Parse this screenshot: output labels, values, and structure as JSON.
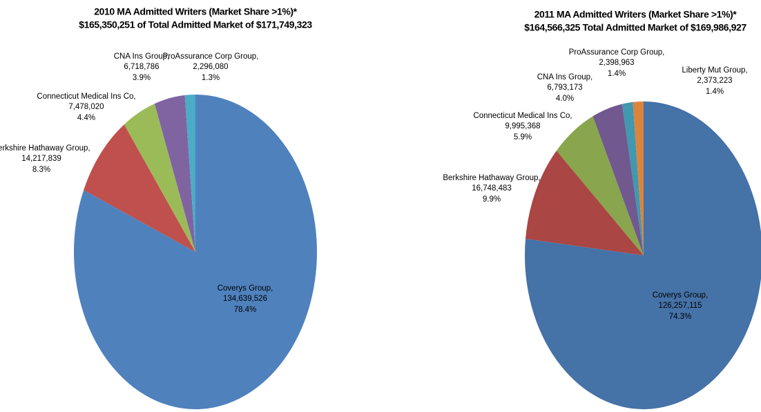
{
  "chart_data": [
    {
      "type": "pie",
      "title": [
        "2010 MA Admitted Writers (Market Share >1%)*",
        "$165,350,251 of Total Admitted Market of $171,749,323"
      ],
      "categories": [
        "Coverys Group,",
        "Berkshire Hathaway Group,",
        "Connecticut Medical Ins Co,",
        "CNA Ins Group,",
        "ProAssurance Corp Group,"
      ],
      "values": [
        134639526,
        14217839,
        7478020,
        6718786,
        2296080
      ],
      "value_labels": [
        "134,639,526",
        "14,217,839",
        "7,478,020",
        "6,718,786",
        "2,296,080"
      ],
      "share_labels": [
        "78.4%",
        "8.3%",
        "4.4%",
        "3.9%",
        "1.3%"
      ],
      "colors": [
        "#4f81bd",
        "#c0504d",
        "#9bbb59",
        "#8064a2",
        "#4bacc6"
      ]
    },
    {
      "type": "pie",
      "title": [
        "2011 MA Admitted Writers (Market Share >1%)*",
        "$164,566,325 Total Admitted Market of $169,986,927"
      ],
      "categories": [
        "Coverys Group,",
        "Berkshire Hathaway Group,",
        "Connecticut Medical Ins Co,",
        "CNA Ins Group,",
        "ProAssurance Corp Group,",
        "Liberty Mut Group,"
      ],
      "values": [
        126257115,
        16748483,
        9995368,
        6793173,
        2398963,
        2373223
      ],
      "value_labels": [
        "126,257,115",
        "16,748,483",
        "9,995,368",
        "6,793,173",
        "2,398,963",
        "2,373,223"
      ],
      "share_labels": [
        "74.3%",
        "9.9%",
        "5.9%",
        "4.0%",
        "1.4%",
        "1.4%"
      ],
      "colors": [
        "#4572a7",
        "#aa4643",
        "#89a54e",
        "#71588f",
        "#4198af",
        "#db843d"
      ]
    }
  ]
}
